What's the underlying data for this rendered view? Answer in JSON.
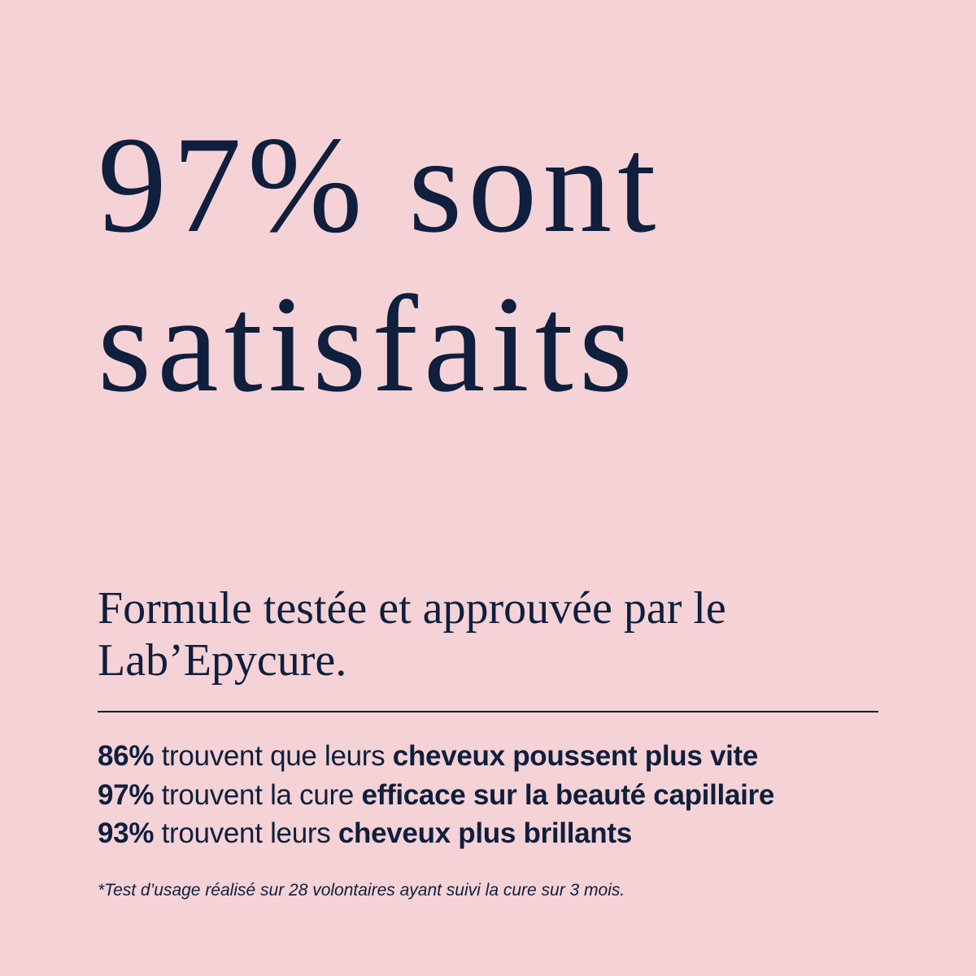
{
  "colors": {
    "background": "#f5d2d6",
    "text": "#0f1f3d"
  },
  "headline": {
    "line1": "97% sont",
    "line2": "satisfaits"
  },
  "subtitle": {
    "line1": "Formule testée et approuvée par le",
    "line2": "Lab’Epycure."
  },
  "stats": [
    {
      "percent": "86%",
      "text": " trouvent que leurs ",
      "bold": "cheveux poussent plus vite"
    },
    {
      "percent": "97%",
      "text": " trouvent la cure ",
      "bold": "efficace sur la beauté capillaire"
    },
    {
      "percent": "93%",
      "text": " trouvent leurs ",
      "bold": "cheveux plus brillants"
    }
  ],
  "footnote": "*Test d’usage réalisé sur 28 volontaires ayant suivi la cure sur 3 mois."
}
